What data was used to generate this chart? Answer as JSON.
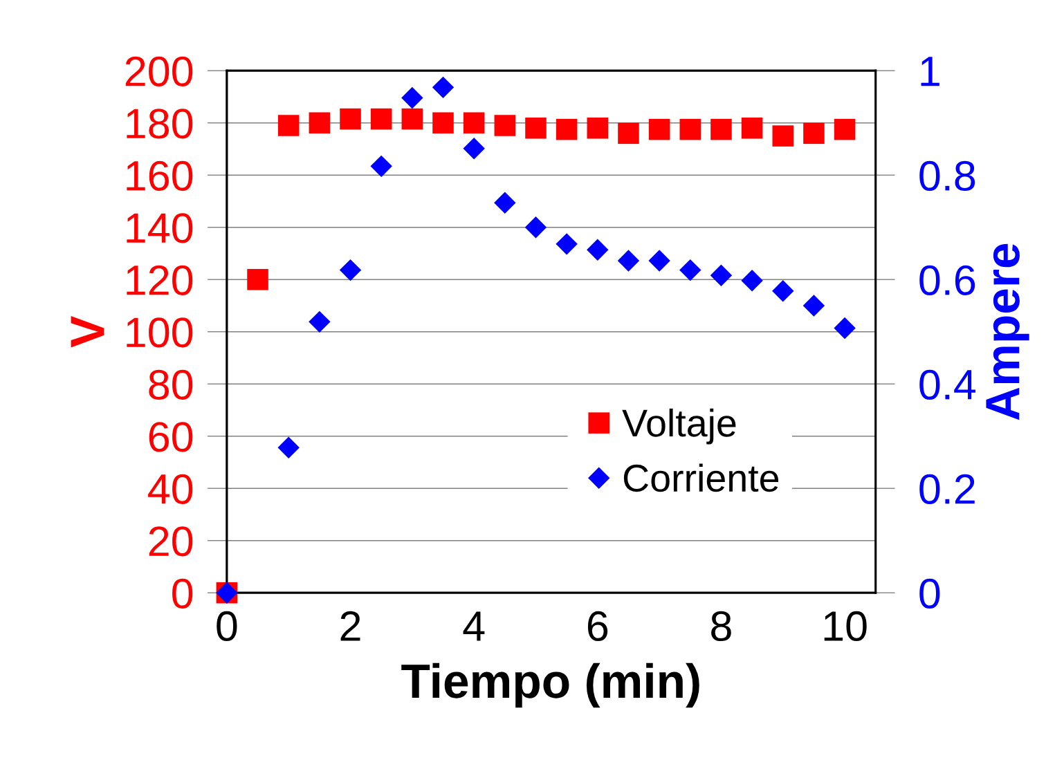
{
  "chart_data": {
    "type": "scatter",
    "xlabel": "Tiempo (min)",
    "ylabel": "V",
    "y2label": "Ampere",
    "xlim": [
      0,
      10.5
    ],
    "xticks": [
      0,
      2,
      4,
      6,
      8,
      10
    ],
    "ylim": [
      0,
      200
    ],
    "yticks": [
      0,
      20,
      40,
      60,
      80,
      100,
      120,
      140,
      160,
      180,
      200
    ],
    "y2lim": [
      0,
      1
    ],
    "y2ticks": [
      0,
      0.2,
      0.4,
      0.6,
      0.8,
      1
    ],
    "grid": "y",
    "legend": "bottom right",
    "series": [
      {
        "name": "Voltaje",
        "color": "#ff0000",
        "marker": "square",
        "x": [
          0,
          0.5,
          1,
          1.5,
          2,
          2.5,
          3,
          3.5,
          4,
          4.5,
          5,
          5.5,
          6,
          6.5,
          7,
          7.5,
          8,
          8.5,
          9,
          9.5,
          10
        ],
        "values": [
          0,
          120,
          179,
          180,
          181.5,
          181.5,
          181.5,
          180,
          180,
          179,
          178,
          177.5,
          178,
          176,
          177.5,
          177.5,
          177.5,
          178,
          175,
          176,
          177.5
        ]
      },
      {
        "name": "Corriente",
        "color": "#0000ff",
        "marker": "diamond",
        "axis": "y2",
        "x": [
          0,
          1,
          1.5,
          2,
          2.5,
          3,
          3.5,
          4,
          4.5,
          5,
          5.5,
          6,
          6.5,
          7,
          7.5,
          8,
          8.5,
          9,
          9.5,
          10
        ],
        "values": [
          0,
          0.278,
          0.519,
          0.618,
          0.817,
          0.948,
          0.968,
          0.851,
          0.747,
          0.7,
          0.668,
          0.657,
          0.636,
          0.636,
          0.618,
          0.608,
          0.598,
          0.578,
          0.55,
          0.507
        ]
      }
    ]
  }
}
